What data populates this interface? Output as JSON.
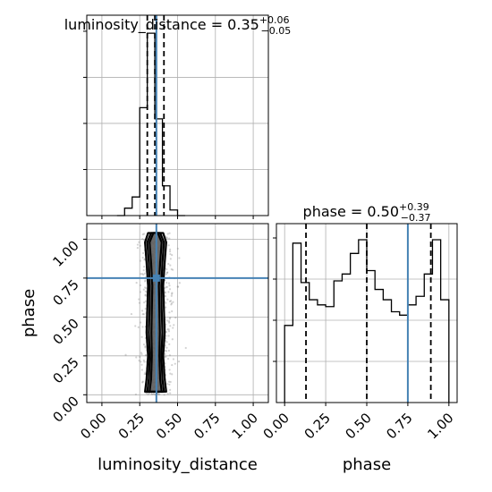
{
  "chart_data": {
    "type": "corner-plot",
    "truths": {
      "luminosity_distance": 0.36,
      "phase": 0.75
    },
    "titles": {
      "luminosity_distance": {
        "prefix": "luminosity_distance = 0.35",
        "plus": "+0.06",
        "minus": "−0.05"
      },
      "phase": {
        "prefix": "phase = 0.50",
        "plus": "+0.39",
        "minus": "−0.37"
      }
    },
    "axis_labels": {
      "x_bottom_left": "luminosity_distance",
      "x_bottom_right": "phase",
      "y_left": "phase"
    },
    "ticks": {
      "values": [
        0.0,
        0.25,
        0.5,
        0.75,
        1.0
      ],
      "labels": [
        "0.00",
        "0.25",
        "0.50",
        "0.75",
        "1.00"
      ]
    },
    "hist_luminosity_distance": {
      "range": [
        -0.1,
        1.1
      ],
      "edges": [
        0.1,
        0.15,
        0.2,
        0.25,
        0.3,
        0.35,
        0.4,
        0.45,
        0.5,
        0.55
      ],
      "counts": [
        0.0,
        0.04,
        0.1,
        0.58,
        0.98,
        0.52,
        0.16,
        0.03,
        0.0
      ],
      "quantiles": [
        0.3,
        0.35,
        0.41
      ]
    },
    "hist_phase": {
      "range": [
        -0.05,
        1.05
      ],
      "edges": [
        0.0,
        0.05,
        0.1,
        0.15,
        0.2,
        0.25,
        0.3,
        0.35,
        0.4,
        0.45,
        0.5,
        0.55,
        0.6,
        0.65,
        0.7,
        0.75,
        0.8,
        0.85,
        0.9,
        0.95,
        1.0
      ],
      "counts": [
        0.45,
        0.93,
        0.7,
        0.6,
        0.57,
        0.56,
        0.71,
        0.75,
        0.87,
        0.95,
        0.77,
        0.66,
        0.6,
        0.53,
        0.51,
        0.57,
        0.62,
        0.75,
        0.95,
        0.6
      ],
      "quantiles": [
        0.13,
        0.5,
        0.89
      ]
    },
    "scatter_2d": {
      "x": "luminosity_distance",
      "y": "phase",
      "xlim": [
        -0.1,
        1.1
      ],
      "ylim": [
        -0.05,
        1.1
      ],
      "contour_width_by_phase": [
        {
          "phase": 0.02,
          "half_widths": [
            0.07,
            0.055,
            0.04
          ]
        },
        {
          "phase": 0.1,
          "half_widths": [
            0.06,
            0.045,
            0.03
          ]
        },
        {
          "phase": 0.25,
          "half_widths": [
            0.05,
            0.038,
            0.025
          ]
        },
        {
          "phase": 0.4,
          "half_widths": [
            0.06,
            0.045,
            0.028
          ]
        },
        {
          "phase": 0.55,
          "half_widths": [
            0.055,
            0.04,
            0.025
          ]
        },
        {
          "phase": 0.7,
          "half_widths": [
            0.05,
            0.038,
            0.022
          ]
        },
        {
          "phase": 0.85,
          "half_widths": [
            0.06,
            0.045,
            0.03
          ]
        },
        {
          "phase": 0.98,
          "half_widths": [
            0.07,
            0.055,
            0.04
          ]
        },
        {
          "phase": 1.04,
          "half_widths": [
            0.05,
            0.03,
            0.015
          ]
        }
      ]
    },
    "colors": {
      "truth": "#4682b4",
      "hist": "#000000",
      "grid": "#b0b0b0",
      "scatter": "#808080"
    }
  }
}
